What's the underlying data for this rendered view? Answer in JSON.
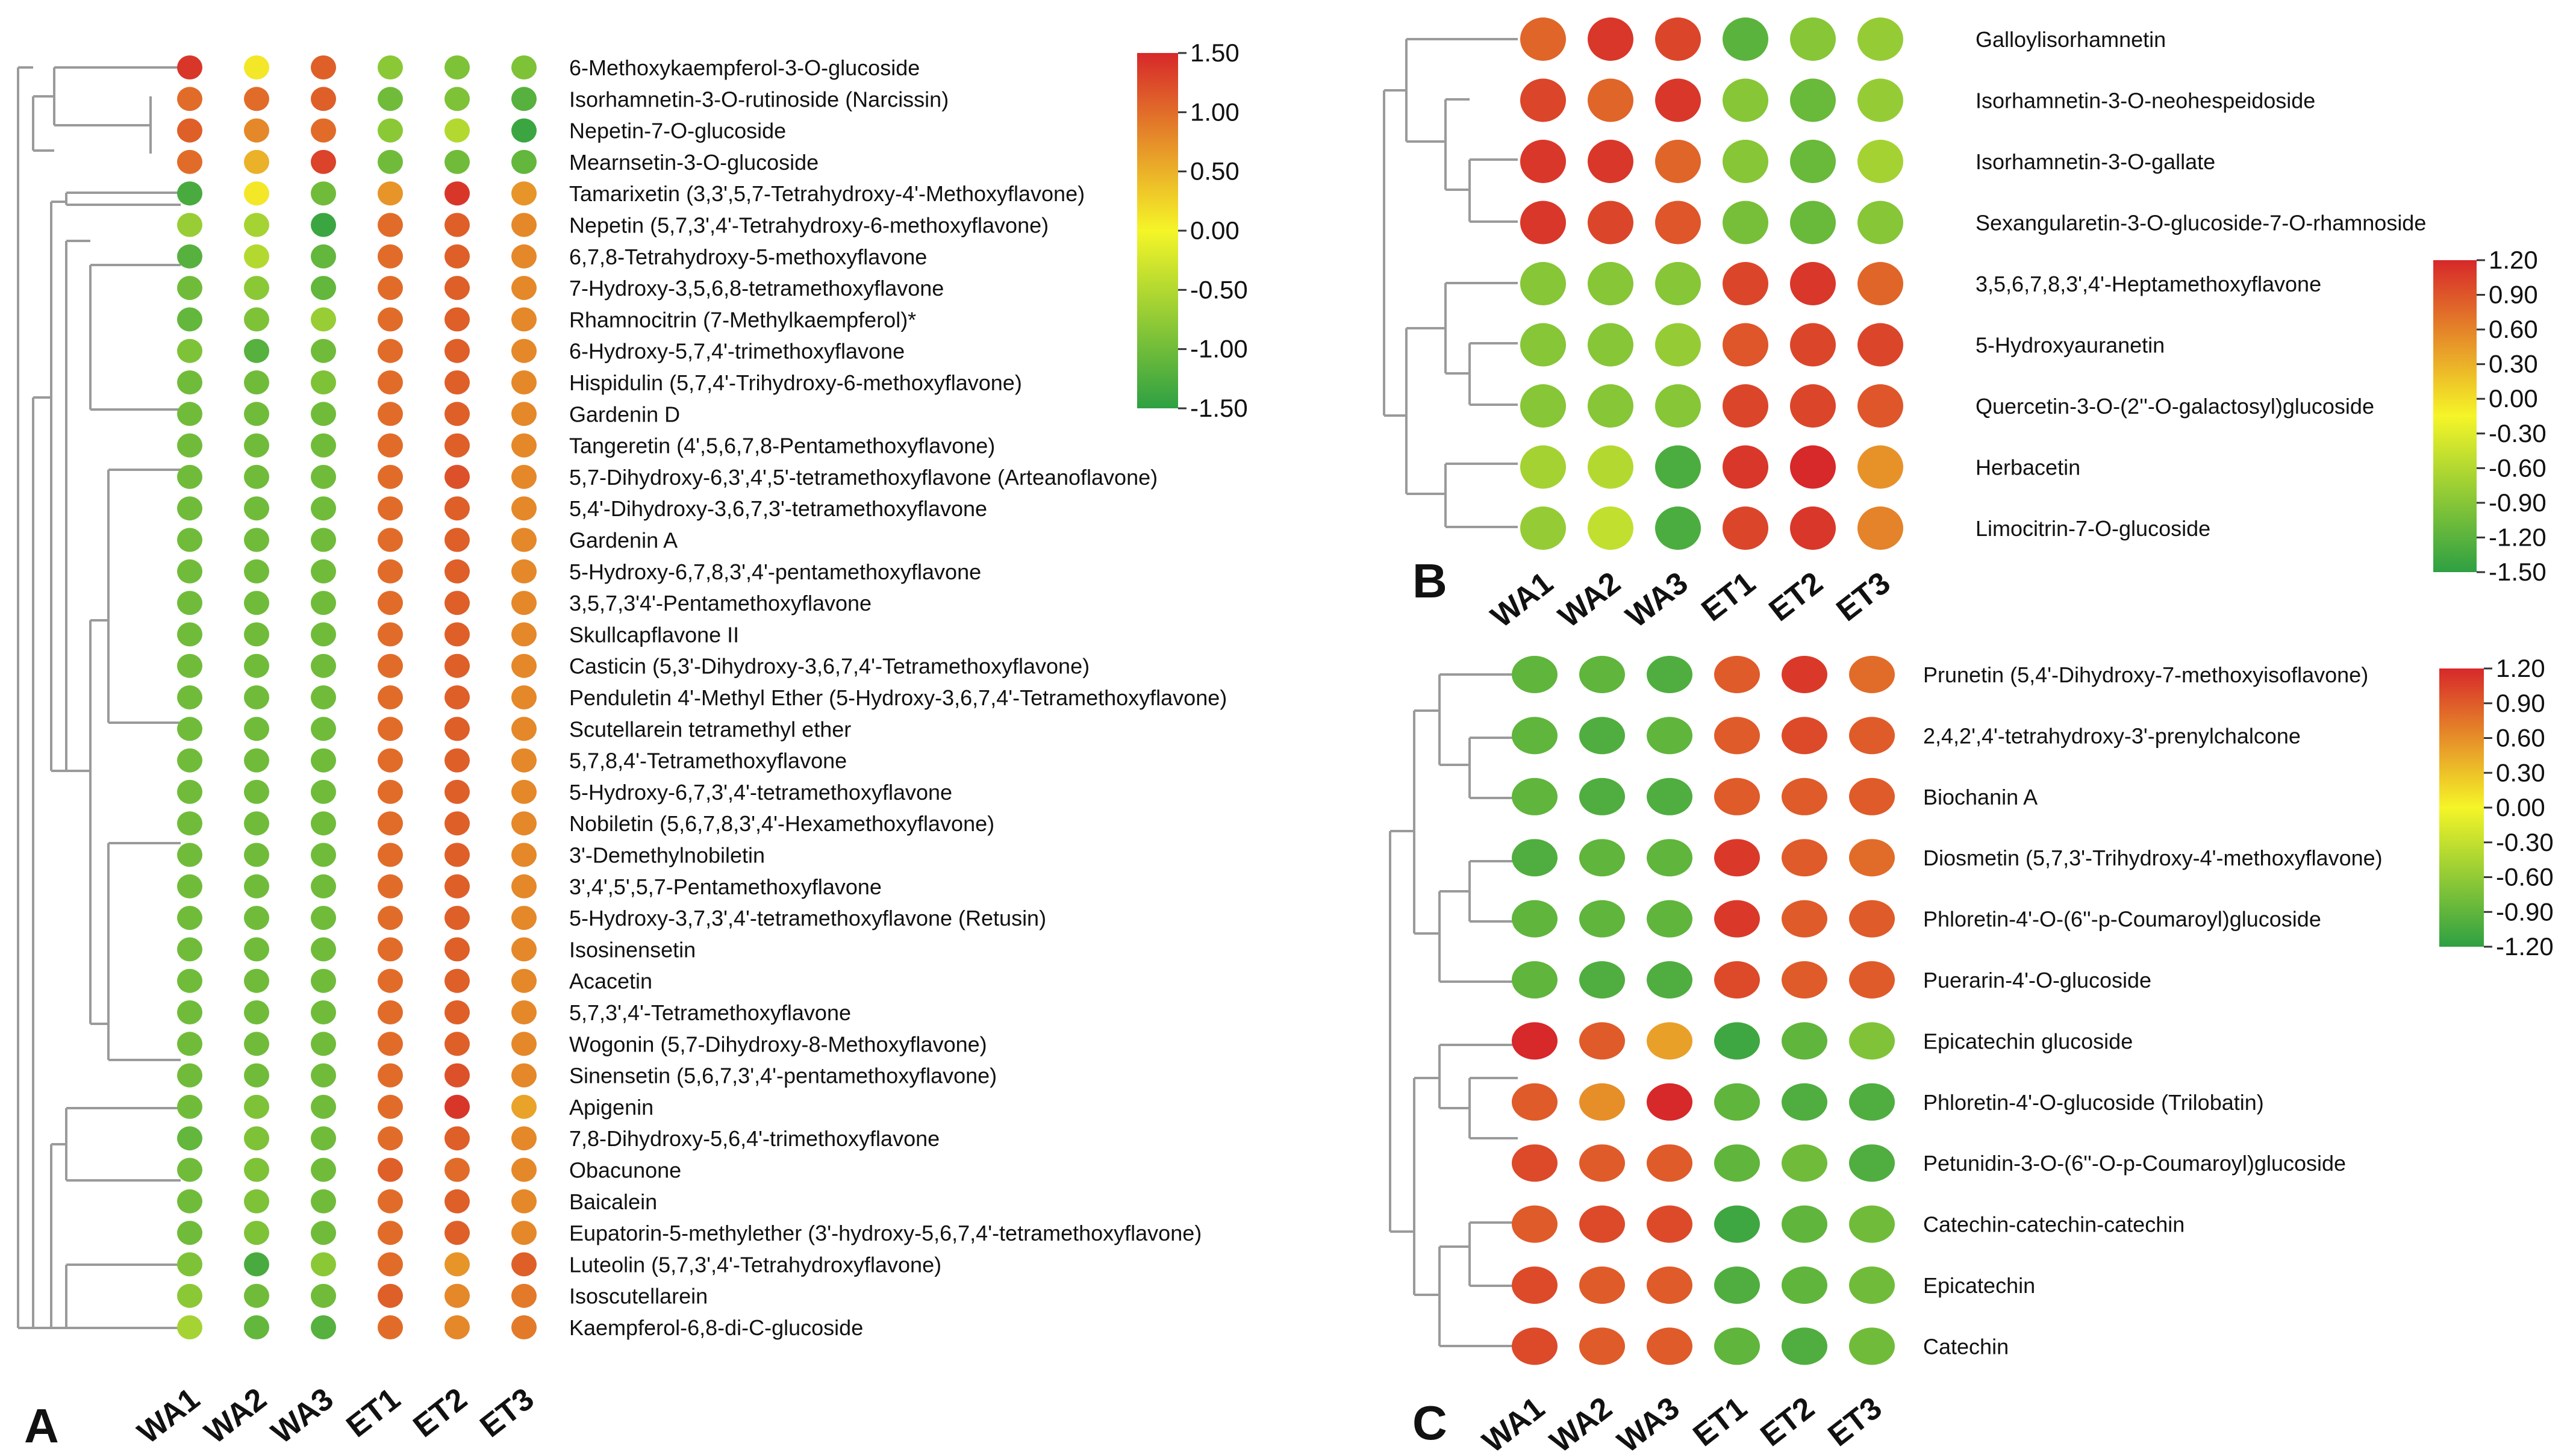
{
  "chart_data": [
    {
      "panel": "A",
      "type": "heatmap",
      "columns": [
        "WA1",
        "WA2",
        "WA3",
        "ET1",
        "ET2",
        "ET3"
      ],
      "color_scale": {
        "min": -1.5,
        "max": 1.5,
        "ticks": [
          "1.50",
          "1.00",
          "0.50",
          "0.00",
          "-0.50",
          "-1.00",
          "-1.50"
        ],
        "colors": [
          "#2ea043",
          "#f5f528",
          "#d7282a"
        ]
      },
      "rows": [
        {
          "label": "6-Methoxykaempferol-3-O-glucoside",
          "values": [
            1.4,
            0.1,
            1.1,
            -0.8,
            -0.9,
            -0.9
          ]
        },
        {
          "label": "Isorhamnetin-3-O-rutinoside (Narcissin)",
          "values": [
            1.0,
            1.0,
            1.1,
            -1.0,
            -0.9,
            -1.2
          ]
        },
        {
          "label": "Nepetin-7-O-glucoside",
          "values": [
            1.1,
            0.8,
            1.0,
            -0.8,
            -0.5,
            -1.4
          ]
        },
        {
          "label": "Mearnsetin-3-O-glucoside",
          "values": [
            1.0,
            0.5,
            1.3,
            -1.0,
            -1.0,
            -1.1
          ]
        },
        {
          "label": "Tamarixetin (3,3',5,7-Tetrahydroxy-4'-Methoxyflavone)",
          "values": [
            -1.3,
            0.1,
            -1.0,
            0.7,
            1.4,
            0.7
          ]
        },
        {
          "label": "Nepetin (5,7,3',4'-Tetrahydroxy-6-methoxyflavone)",
          "values": [
            -0.7,
            -0.6,
            -1.4,
            1.0,
            1.1,
            0.8
          ]
        },
        {
          "label": "6,7,8-Tetrahydroxy-5-methoxyflavone",
          "values": [
            -1.2,
            -0.5,
            -1.1,
            1.0,
            1.1,
            0.8
          ]
        },
        {
          "label": "7-Hydroxy-3,5,6,8-tetramethoxyflavone",
          "values": [
            -1.0,
            -0.8,
            -1.1,
            1.0,
            1.1,
            0.8
          ]
        },
        {
          "label": "Rhamnocitrin (7-Methylkaempferol)*",
          "values": [
            -1.1,
            -0.9,
            -0.7,
            1.0,
            1.1,
            0.8
          ]
        },
        {
          "label": "6-Hydroxy-5,7,4'-trimethoxyflavone",
          "values": [
            -0.9,
            -1.2,
            -1.0,
            1.0,
            1.1,
            0.8
          ]
        },
        {
          "label": "Hispidulin (5,7,4'-Trihydroxy-6-methoxyflavone)",
          "values": [
            -1.0,
            -1.0,
            -0.9,
            1.0,
            1.1,
            0.8
          ]
        },
        {
          "label": "Gardenin D",
          "values": [
            -1.0,
            -1.0,
            -1.0,
            1.0,
            1.1,
            0.8
          ]
        },
        {
          "label": "Tangeretin (4',5,6,7,8-Pentamethoxyflavone)",
          "values": [
            -1.0,
            -1.0,
            -1.0,
            1.0,
            1.1,
            0.8
          ]
        },
        {
          "label": "5,7-Dihydroxy-6,3',4',5'-tetramethoxyflavone (Arteanoflavone)",
          "values": [
            -1.0,
            -1.0,
            -1.0,
            1.0,
            1.2,
            0.8
          ]
        },
        {
          "label": "5,4'-Dihydroxy-3,6,7,3'-tetramethoxyflavone",
          "values": [
            -1.0,
            -1.0,
            -1.0,
            1.0,
            1.1,
            0.8
          ]
        },
        {
          "label": "Gardenin A",
          "values": [
            -1.0,
            -1.0,
            -1.0,
            1.0,
            1.1,
            0.8
          ]
        },
        {
          "label": "5-Hydroxy-6,7,8,3',4'-pentamethoxyflavone",
          "values": [
            -1.0,
            -1.0,
            -1.0,
            1.0,
            1.1,
            0.8
          ]
        },
        {
          "label": "3,5,7,3'4'-Pentamethoxyflavone",
          "values": [
            -1.0,
            -1.0,
            -1.0,
            1.0,
            1.1,
            0.8
          ]
        },
        {
          "label": "Skullcapflavone II",
          "values": [
            -1.0,
            -1.0,
            -1.0,
            1.0,
            1.1,
            0.8
          ]
        },
        {
          "label": "Casticin (5,3'-Dihydroxy-3,6,7,4'-Tetramethoxyflavone)",
          "values": [
            -1.0,
            -1.0,
            -1.0,
            1.0,
            1.1,
            0.8
          ]
        },
        {
          "label": "Penduletin 4'-Methyl Ether (5-Hydroxy-3,6,7,4'-Tetramethoxyflavone)",
          "values": [
            -1.0,
            -1.0,
            -1.0,
            1.0,
            1.1,
            0.8
          ]
        },
        {
          "label": "Scutellarein tetramethyl ether",
          "values": [
            -1.0,
            -1.0,
            -1.0,
            1.0,
            1.1,
            0.8
          ]
        },
        {
          "label": "5,7,8,4'-Tetramethoxyflavone",
          "values": [
            -1.0,
            -1.0,
            -1.0,
            1.0,
            1.1,
            0.8
          ]
        },
        {
          "label": "5-Hydroxy-6,7,3',4'-tetramethoxyflavone",
          "values": [
            -1.0,
            -1.0,
            -1.0,
            1.0,
            1.1,
            0.8
          ]
        },
        {
          "label": "Nobiletin (5,6,7,8,3',4'-Hexamethoxyflavone)",
          "values": [
            -1.0,
            -1.0,
            -1.0,
            1.0,
            1.1,
            0.8
          ]
        },
        {
          "label": "3'-Demethylnobiletin",
          "values": [
            -1.0,
            -1.0,
            -1.0,
            1.0,
            1.1,
            0.8
          ]
        },
        {
          "label": "3',4',5',5,7-Pentamethoxyflavone",
          "values": [
            -1.0,
            -1.0,
            -1.0,
            1.0,
            1.1,
            0.8
          ]
        },
        {
          "label": "5-Hydroxy-3,7,3',4'-tetramethoxyflavone (Retusin)",
          "values": [
            -1.0,
            -1.0,
            -1.0,
            1.0,
            1.1,
            0.8
          ]
        },
        {
          "label": "Isosinensetin",
          "values": [
            -1.0,
            -1.0,
            -1.0,
            1.0,
            1.1,
            0.8
          ]
        },
        {
          "label": "Acacetin",
          "values": [
            -1.0,
            -1.0,
            -1.0,
            1.0,
            1.1,
            0.8
          ]
        },
        {
          "label": "5,7,3',4'-Tetramethoxyflavone",
          "values": [
            -1.0,
            -1.0,
            -1.0,
            1.0,
            1.1,
            0.8
          ]
        },
        {
          "label": "Wogonin (5,7-Dihydroxy-8-Methoxyflavone)",
          "values": [
            -1.0,
            -1.0,
            -1.0,
            1.0,
            1.1,
            0.8
          ]
        },
        {
          "label": "Sinensetin (5,6,7,3',4'-pentamethoxyflavone)",
          "values": [
            -1.0,
            -1.0,
            -1.0,
            1.0,
            1.2,
            0.8
          ]
        },
        {
          "label": "Apigenin",
          "values": [
            -1.0,
            -0.9,
            -1.0,
            1.0,
            1.4,
            0.6
          ]
        },
        {
          "label": "7,8-Dihydroxy-5,6,4'-trimethoxyflavone",
          "values": [
            -1.1,
            -0.9,
            -1.0,
            1.0,
            1.1,
            0.8
          ]
        },
        {
          "label": "Obacunone",
          "values": [
            -1.0,
            -0.9,
            -1.0,
            1.1,
            1.0,
            0.8
          ]
        },
        {
          "label": "Baicalein",
          "values": [
            -1.0,
            -0.9,
            -1.0,
            1.0,
            1.1,
            0.8
          ]
        },
        {
          "label": "Eupatorin-5-methylether (3'-hydroxy-5,6,7,4'-tetramethoxyflavone)",
          "values": [
            -1.0,
            -0.9,
            -1.0,
            1.0,
            1.1,
            0.8
          ]
        },
        {
          "label": "Luteolin (5,7,3',4'-Tetrahydroxyflavone)",
          "values": [
            -0.9,
            -1.3,
            -0.8,
            1.0,
            0.7,
            1.1
          ]
        },
        {
          "label": "Isoscutellarein",
          "values": [
            -0.8,
            -1.0,
            -1.0,
            1.1,
            0.8,
            0.9
          ]
        },
        {
          "label": "Kaempferol-6,8-di-C-glucoside",
          "values": [
            -0.6,
            -1.1,
            -1.2,
            1.0,
            0.8,
            0.9
          ]
        }
      ]
    },
    {
      "panel": "B",
      "type": "heatmap",
      "columns": [
        "WA1",
        "WA2",
        "WA3",
        "ET1",
        "ET2",
        "ET3"
      ],
      "color_scale": {
        "min": -1.5,
        "max": 1.2,
        "ticks": [
          "1.20",
          "0.90",
          "0.60",
          "0.30",
          "0.00",
          "-0.30",
          "-0.60",
          "-0.90",
          "-1.20",
          "-1.50"
        ],
        "colors": [
          "#2ea043",
          "#f5f528",
          "#d7282a"
        ]
      },
      "rows": [
        {
          "label": "Galloylisorhamnetin",
          "values": [
            0.8,
            1.1,
            1.0,
            -1.2,
            -0.9,
            -0.8
          ]
        },
        {
          "label": "Isorhamnetin-3-O-neohespeidoside",
          "values": [
            1.0,
            0.8,
            1.1,
            -0.9,
            -1.1,
            -0.8
          ]
        },
        {
          "label": "Isorhamnetin-3-O-gallate",
          "values": [
            1.1,
            1.1,
            0.8,
            -0.9,
            -1.1,
            -0.7
          ]
        },
        {
          "label": "Sexangularetin-3-O-glucoside-7-O-rhamnoside",
          "values": [
            1.1,
            1.0,
            0.9,
            -1.0,
            -1.1,
            -0.9
          ]
        },
        {
          "label": "3,5,6,7,8,3',4'-Heptamethoxyflavone",
          "values": [
            -0.9,
            -0.9,
            -0.9,
            1.0,
            1.1,
            0.8
          ]
        },
        {
          "label": "5-Hydroxyauranetin",
          "values": [
            -0.9,
            -0.9,
            -0.8,
            0.9,
            1.0,
            1.0
          ]
        },
        {
          "label": "Quercetin-3-O-(2''-O-galactosyl)glucoside",
          "values": [
            -0.9,
            -0.9,
            -0.9,
            1.0,
            1.0,
            0.9
          ]
        },
        {
          "label": "Herbacetin",
          "values": [
            -0.7,
            -0.6,
            -1.3,
            1.1,
            1.2,
            0.5
          ]
        },
        {
          "label": "Limocitrin-7-O-glucoside",
          "values": [
            -0.8,
            -0.5,
            -1.3,
            1.0,
            1.1,
            0.6
          ]
        }
      ]
    },
    {
      "panel": "C",
      "type": "heatmap",
      "columns": [
        "WA1",
        "WA2",
        "WA3",
        "ET1",
        "ET2",
        "ET3"
      ],
      "color_scale": {
        "min": -1.2,
        "max": 1.2,
        "ticks": [
          "1.20",
          "0.90",
          "0.60",
          "0.30",
          "0.00",
          "-0.30",
          "-0.60",
          "-0.90",
          "-1.20"
        ],
        "colors": [
          "#2ea043",
          "#f5f528",
          "#d7282a"
        ]
      },
      "rows": [
        {
          "label": "Prunetin (5,4'-Dihydroxy-7-methoxyisoflavone)",
          "values": [
            -0.9,
            -0.9,
            -1.0,
            0.9,
            1.1,
            0.8
          ]
        },
        {
          "label": "2,4,2',4'-tetrahydroxy-3'-prenylchalcone",
          "values": [
            -0.9,
            -1.0,
            -0.9,
            0.9,
            1.0,
            0.9
          ]
        },
        {
          "label": "Biochanin A",
          "values": [
            -0.9,
            -1.0,
            -1.0,
            0.9,
            0.9,
            0.9
          ]
        },
        {
          "label": "Diosmetin (5,7,3'-Trihydroxy-4'-methoxyflavone)",
          "values": [
            -1.0,
            -0.9,
            -0.9,
            1.1,
            0.9,
            0.8
          ]
        },
        {
          "label": "Phloretin-4'-O-(6''-p-Coumaroyl)glucoside",
          "values": [
            -0.9,
            -0.9,
            -0.9,
            1.1,
            0.9,
            0.9
          ]
        },
        {
          "label": "Puerarin-4'-O-glucoside",
          "values": [
            -0.9,
            -1.0,
            -1.0,
            1.0,
            0.9,
            0.9
          ]
        },
        {
          "label": "Epicatechin glucoside",
          "values": [
            1.2,
            0.9,
            0.5,
            -1.1,
            -0.9,
            -0.7
          ]
        },
        {
          "label": "Phloretin-4'-O-glucoside (Trilobatin)",
          "values": [
            0.9,
            0.6,
            1.2,
            -0.9,
            -1.0,
            -1.0
          ]
        },
        {
          "label": "Petunidin-3-O-(6''-O-p-Coumaroyl)glucoside",
          "values": [
            1.0,
            0.9,
            0.9,
            -0.9,
            -0.8,
            -1.0
          ]
        },
        {
          "label": "Catechin-catechin-catechin",
          "values": [
            0.9,
            1.0,
            1.0,
            -1.1,
            -0.9,
            -0.8
          ]
        },
        {
          "label": "Epicatechin",
          "values": [
            1.0,
            0.9,
            0.9,
            -1.0,
            -0.9,
            -0.8
          ]
        },
        {
          "label": "Catechin",
          "values": [
            1.0,
            0.9,
            0.9,
            -0.9,
            -1.0,
            -0.8
          ]
        }
      ]
    }
  ]
}
